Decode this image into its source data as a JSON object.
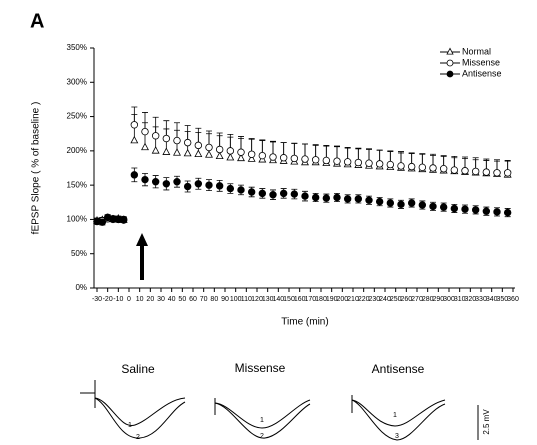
{
  "chart_data": {
    "type": "scatter",
    "panel_label": "A",
    "x_label": "Time (min)",
    "y_label": "fEPSP Slope ( % of baseline )",
    "xlim": [
      -30,
      360
    ],
    "ylim": [
      0,
      350
    ],
    "xticks": [
      -30,
      -20,
      -10,
      0,
      10,
      20,
      30,
      40,
      50,
      60,
      70,
      80,
      90,
      100,
      110,
      120,
      130,
      140,
      150,
      160,
      170,
      180,
      190,
      200,
      210,
      220,
      230,
      240,
      250,
      260,
      270,
      280,
      290,
      300,
      310,
      320,
      330,
      340,
      350,
      360
    ],
    "yticks": [
      {
        "value": 0,
        "label": "0%"
      },
      {
        "value": 50,
        "label": "50%"
      },
      {
        "value": 100,
        "label": "100%"
      },
      {
        "value": 150,
        "label": "150%"
      },
      {
        "value": 200,
        "label": "200%"
      },
      {
        "value": 250,
        "label": "250%"
      },
      {
        "value": 300,
        "label": "300%"
      },
      {
        "value": 350,
        "label": "350%"
      }
    ],
    "legend": "upper right",
    "x": [
      -30,
      -25,
      -20,
      -15,
      -10,
      -5,
      5,
      15,
      25,
      35,
      45,
      55,
      65,
      75,
      85,
      95,
      105,
      115,
      125,
      135,
      145,
      155,
      165,
      175,
      185,
      195,
      205,
      215,
      225,
      235,
      245,
      255,
      265,
      275,
      285,
      295,
      305,
      315,
      325,
      335,
      345,
      355
    ],
    "series": [
      {
        "name": "Normal",
        "color": "#000000",
        "marker": "triangle",
        "filled": false,
        "error_bars": "up",
        "values": [
          98,
          99,
          102,
          100,
          101,
          99,
          215,
          205,
          200,
          198,
          197,
          196,
          195,
          194,
          192,
          190,
          189,
          188,
          187,
          186,
          185,
          184,
          183,
          183,
          182,
          181,
          180,
          179,
          178,
          177,
          176,
          175,
          174,
          173,
          172,
          171,
          170,
          169,
          168,
          167,
          166,
          165
        ],
        "errors": [
          4,
          4,
          4,
          4,
          4,
          4,
          38,
          36,
          35,
          34,
          33,
          32,
          32,
          31,
          30,
          30,
          29,
          29,
          28,
          28,
          27,
          27,
          27,
          26,
          26,
          26,
          25,
          25,
          25,
          24,
          24,
          24,
          23,
          23,
          23,
          22,
          22,
          22,
          22,
          21,
          21,
          21
        ]
      },
      {
        "name": "Missense",
        "color": "#000000",
        "marker": "circle",
        "filled": false,
        "error_bars": "up",
        "values": [
          97,
          98,
          101,
          100,
          100,
          99,
          238,
          228,
          222,
          218,
          215,
          212,
          208,
          205,
          202,
          200,
          198,
          195,
          193,
          191,
          190,
          189,
          188,
          187,
          186,
          185,
          184,
          183,
          182,
          181,
          180,
          178,
          177,
          176,
          175,
          174,
          172,
          171,
          170,
          169,
          168,
          168
        ],
        "errors": [
          4,
          4,
          4,
          4,
          4,
          4,
          26,
          28,
          27,
          26,
          26,
          25,
          25,
          24,
          24,
          24,
          23,
          23,
          23,
          22,
          22,
          22,
          22,
          21,
          21,
          21,
          20,
          20,
          20,
          20,
          19,
          19,
          19,
          19,
          18,
          18,
          18,
          18,
          17,
          17,
          17,
          17
        ]
      },
      {
        "name": "Antisense",
        "color": "#000000",
        "marker": "circle",
        "filled": true,
        "error_bars": "both",
        "values": [
          97,
          96,
          103,
          101,
          100,
          100,
          165,
          158,
          155,
          152,
          155,
          148,
          152,
          150,
          149,
          145,
          143,
          140,
          138,
          136,
          138,
          137,
          134,
          132,
          131,
          132,
          130,
          130,
          128,
          126,
          124,
          122,
          124,
          121,
          119,
          118,
          116,
          115,
          114,
          112,
          111,
          110
        ],
        "errors": [
          4,
          4,
          4,
          4,
          4,
          4,
          10,
          9,
          9,
          9,
          8,
          8,
          8,
          8,
          8,
          7,
          7,
          7,
          7,
          7,
          7,
          7,
          7,
          6,
          6,
          6,
          6,
          6,
          6,
          6,
          6,
          6,
          6,
          6,
          6,
          6,
          6,
          6,
          6,
          6,
          6,
          6
        ]
      }
    ],
    "insets": [
      {
        "title": "Saline",
        "numbers": [
          "1",
          "2"
        ]
      },
      {
        "title": "Missense",
        "numbers": [
          "1",
          "2"
        ]
      },
      {
        "title": "Antisense",
        "numbers": [
          "1",
          "3"
        ]
      }
    ],
    "scale_label": "2.5 mV"
  }
}
